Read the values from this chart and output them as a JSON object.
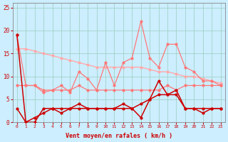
{
  "x": [
    0,
    1,
    2,
    3,
    4,
    5,
    6,
    7,
    8,
    9,
    10,
    11,
    12,
    13,
    14,
    15,
    16,
    17,
    18,
    19,
    20,
    21,
    22,
    23
  ],
  "line_light1": [
    16,
    16,
    15.5,
    15,
    14.5,
    14,
    13.5,
    13,
    12.5,
    12,
    12,
    12,
    12,
    12,
    12,
    11.5,
    11,
    11,
    10.5,
    10,
    10,
    9.5,
    9,
    8.5
  ],
  "line_light2": [
    19,
    8,
    8,
    6.5,
    7,
    8,
    6.5,
    11,
    9.5,
    7,
    13,
    8,
    13,
    14,
    22,
    14,
    12,
    17,
    17,
    12,
    11,
    9,
    9,
    8
  ],
  "line_light3": [
    8,
    8,
    8,
    7,
    7,
    7,
    7,
    8,
    7,
    7,
    7,
    7,
    7,
    7,
    7,
    7,
    7,
    8,
    7,
    8,
    8,
    8,
    8,
    8
  ],
  "line_dark1": [
    3,
    0,
    1,
    2,
    3,
    2,
    3,
    4,
    3,
    3,
    3,
    3,
    4,
    3,
    4,
    5,
    6,
    6,
    7,
    3,
    3,
    2,
    3,
    3
  ],
  "line_dark2": [
    19,
    0,
    0,
    3,
    3,
    3,
    3,
    3,
    3,
    3,
    3,
    3,
    3,
    3,
    1,
    5,
    9,
    6,
    6,
    3,
    3,
    3,
    3,
    3
  ],
  "color_dark": "#cc0000",
  "color_mid": "#ff7777",
  "color_light": "#ffaaaa",
  "bg_color": "#cceeff",
  "grid_color": "#99ccbb",
  "xlabel": "Vent moyen/en rafales ( km/h )",
  "ylim": [
    0,
    26
  ],
  "xlim": [
    -0.5,
    23.5
  ],
  "yticks": [
    0,
    5,
    10,
    15,
    20,
    25
  ]
}
